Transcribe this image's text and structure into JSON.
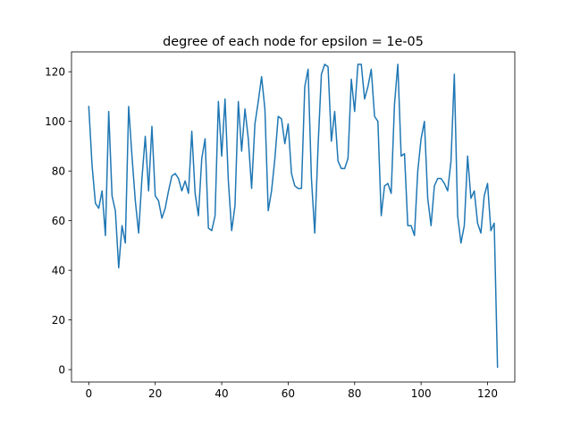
{
  "chart_data": {
    "type": "line",
    "title": "degree of each node for epsilon = 1e-05",
    "xlabel": "",
    "ylabel": "",
    "xlim": [
      -5.2,
      128.2
    ],
    "ylim": [
      -5,
      128
    ],
    "x_ticks": [
      0,
      20,
      40,
      60,
      80,
      100,
      120
    ],
    "y_ticks": [
      0,
      20,
      40,
      60,
      80,
      100,
      120
    ],
    "grid": false,
    "series": [
      {
        "name": "",
        "color": "#1f77b4",
        "values": [
          106,
          82,
          67,
          65,
          72,
          54,
          104,
          70,
          64,
          41,
          58,
          51,
          106,
          86,
          68,
          55,
          77,
          94,
          72,
          98,
          70,
          68,
          61,
          65,
          72,
          78,
          79,
          77,
          72,
          76,
          71,
          96,
          71,
          62,
          85,
          93,
          57,
          56,
          62,
          108,
          86,
          109,
          76,
          56,
          66,
          108,
          88,
          105,
          93,
          73,
          99,
          108,
          118,
          105,
          64,
          72,
          85,
          102,
          101,
          91,
          99,
          79,
          74,
          73,
          73,
          114,
          121,
          77,
          55,
          90,
          119,
          123,
          122,
          92,
          104,
          84,
          81,
          81,
          85,
          117,
          104,
          123,
          123,
          109,
          114,
          121,
          102,
          100,
          62,
          74,
          75,
          71,
          107,
          123,
          86,
          87,
          58,
          58,
          54,
          80,
          93,
          100,
          69,
          58,
          74,
          77,
          77,
          75,
          72,
          84,
          119,
          62,
          51,
          58,
          86,
          69,
          72,
          59,
          55,
          70,
          75,
          56,
          59,
          1
        ]
      }
    ]
  }
}
